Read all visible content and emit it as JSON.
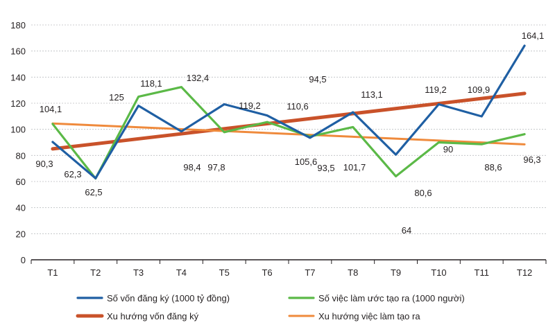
{
  "chart_data": {
    "type": "line",
    "categories": [
      "T1",
      "T2",
      "T3",
      "T4",
      "T5",
      "T6",
      "T7",
      "T8",
      "T9",
      "T10",
      "T11",
      "T12"
    ],
    "ylim": [
      0,
      180
    ],
    "yticks": [
      "0",
      "20",
      "40",
      "60",
      "80",
      "100",
      "120",
      "140",
      "160",
      "180"
    ],
    "grid": true,
    "legend_position": "bottom",
    "series": [
      {
        "name": "Số vốn đăng ký (1000 tỷ đồng)",
        "color": "#1f5fa3",
        "values": [
          90.3,
          62.5,
          118.1,
          98.4,
          119.2,
          110.6,
          93.5,
          113.1,
          80.6,
          119.2,
          109.9,
          164.1
        ],
        "labels": [
          "90,3",
          "62,5",
          "118,1",
          "98,4",
          "119,2",
          "110,6",
          "93,5",
          "113,1",
          "80,6",
          "119,2",
          "109,9",
          "164,1"
        ]
      },
      {
        "name": "Số việc làm ước tạo ra (1000 người)",
        "color": "#5bb947",
        "values": [
          104.1,
          62.3,
          125,
          132.4,
          97.8,
          105.6,
          94.5,
          101.7,
          64,
          90,
          88.6,
          96.3
        ],
        "labels": [
          "104,1",
          "62,3",
          "125",
          "132,4",
          "97,8",
          "105,6",
          "94,5",
          "101,7",
          "64",
          "90",
          "88,6",
          "96,3"
        ]
      },
      {
        "name": "Xu hướng vốn đăng ký",
        "color": "#c9522a",
        "trend": [
          85,
          127.5
        ]
      },
      {
        "name": "Xu hướng việc làm tạo ra",
        "color": "#ef8a3c",
        "trend": [
          104.5,
          88.5
        ]
      }
    ]
  }
}
